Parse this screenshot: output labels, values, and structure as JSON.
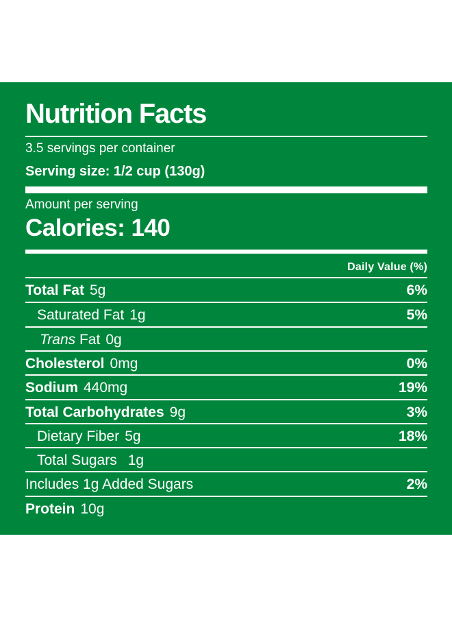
{
  "label": {
    "title": "Nutrition Facts",
    "servings_per_container": "3.5 servings per container",
    "serving_size": "Serving size: 1/2 cup (130g)",
    "amount_per_serving": "Amount per serving",
    "calories": "Calories: 140",
    "daily_value_header": "Daily Value (%)"
  },
  "nutrients": [
    {
      "name": "Total Fat",
      "amount": "5g",
      "dv": "6%"
    },
    {
      "name": "Saturated Fat",
      "amount": "1g",
      "dv": "5%"
    },
    {
      "name": "Trans",
      "name_suffix": "Fat",
      "amount": "0g",
      "dv": ""
    },
    {
      "name": "Cholesterol",
      "amount": "0mg",
      "dv": "0%"
    },
    {
      "name": "Sodium",
      "amount": "440mg",
      "dv": "19%"
    },
    {
      "name": "Total Carbohydrates",
      "amount": "9g",
      "dv": "3%"
    },
    {
      "name": "Dietary Fiber",
      "amount": "5g",
      "dv": "18%"
    },
    {
      "name": "Total Sugars",
      "amount": "1g",
      "dv": ""
    },
    {
      "name": "Includes 1g Added Sugars",
      "amount": "",
      "dv": "2%"
    },
    {
      "name": "Protein",
      "amount": "10g",
      "dv": ""
    }
  ],
  "colors": {
    "panel_background": "#00863c",
    "text": "#ffffff",
    "page_background": "#ffffff"
  }
}
